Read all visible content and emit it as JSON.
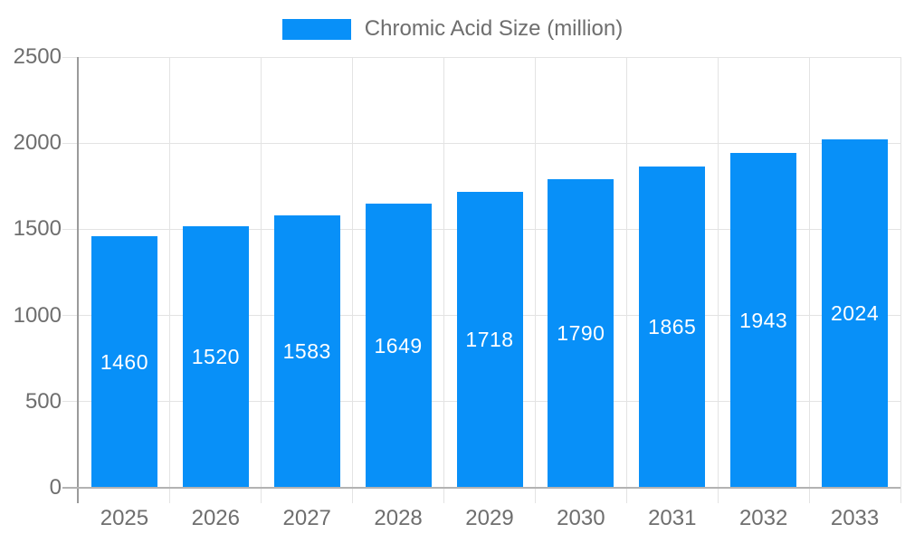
{
  "legend": {
    "label": "Chromic Acid Size (million)"
  },
  "chart_data": {
    "type": "bar",
    "title": "Chromic Acid Size (million)",
    "categories": [
      "2025",
      "2026",
      "2027",
      "2028",
      "2029",
      "2030",
      "2031",
      "2032",
      "2033"
    ],
    "values": [
      1460,
      1520,
      1583,
      1649,
      1718,
      1790,
      1865,
      1943,
      2024
    ],
    "value_labels": [
      "1460",
      "1520",
      "1583",
      "1649",
      "1718",
      "1790",
      "1865",
      "1943",
      "2024"
    ],
    "xlabel": "",
    "ylabel": "",
    "ylim": [
      0,
      2500
    ],
    "yticks": [
      0,
      500,
      1000,
      1500,
      2000,
      2500
    ],
    "grid": true,
    "legend_position": "top-center",
    "colors": {
      "bar": "#0890f8",
      "value_label": "#ffffff",
      "grid": "#e3e3e3",
      "baseline": "#b3b3b3",
      "axis": "#9a9a9a",
      "tick_label": "#6e6e6e"
    }
  }
}
